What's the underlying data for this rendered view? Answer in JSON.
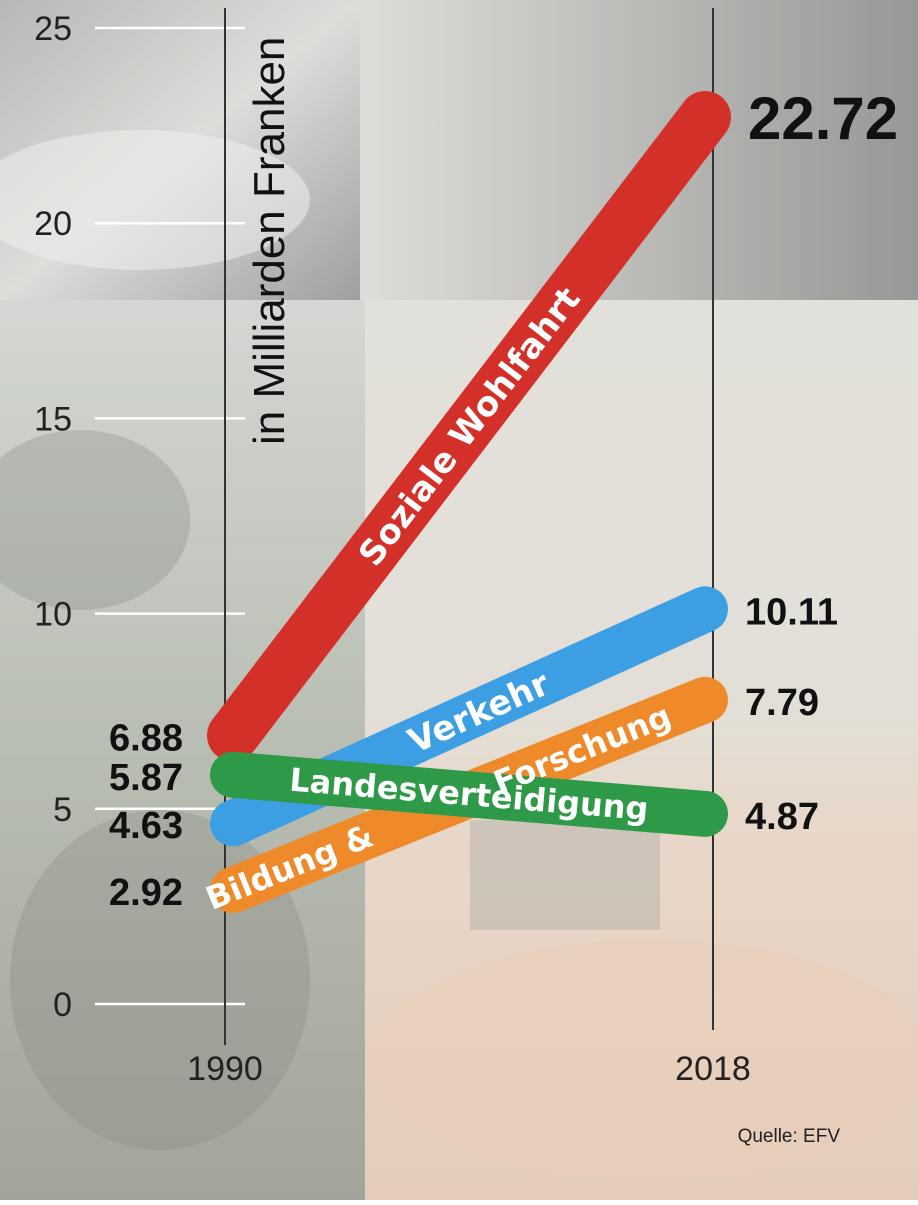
{
  "chart_data": {
    "type": "line",
    "title": "",
    "xlabel": "",
    "ylabel": "in Milliarden Franken",
    "x": [
      "1990",
      "2018"
    ],
    "ylim": [
      0,
      25
    ],
    "yticks": [
      "0",
      "5",
      "10",
      "15",
      "20",
      "25"
    ],
    "series": [
      {
        "name": "Soziale Wohlfahrt",
        "values": [
          6.88,
          22.72
        ],
        "color": "#d4302a",
        "value_labels": [
          "6.88",
          "22.72"
        ]
      },
      {
        "name": "Verkehr",
        "values": [
          4.63,
          10.11
        ],
        "color": "#3d9fe3",
        "value_labels": [
          "4.63",
          "10.11"
        ]
      },
      {
        "name": "Bildung & Forschung",
        "label_parts": [
          "Bildung &",
          "Forschung"
        ],
        "values": [
          2.92,
          7.79
        ],
        "color": "#ef8a2b",
        "value_labels": [
          "2.92",
          "7.79"
        ]
      },
      {
        "name": "Landesverteidigung",
        "values": [
          5.87,
          4.87
        ],
        "color": "#2e9a47",
        "value_labels": [
          "5.87",
          "4.87"
        ]
      }
    ],
    "source": "Quelle: EFV"
  },
  "colors": {
    "axis_line": "#333333",
    "grid": "#ffffff",
    "background_top": "#c9c9c9",
    "background_bottom": "#bfb5a5"
  }
}
